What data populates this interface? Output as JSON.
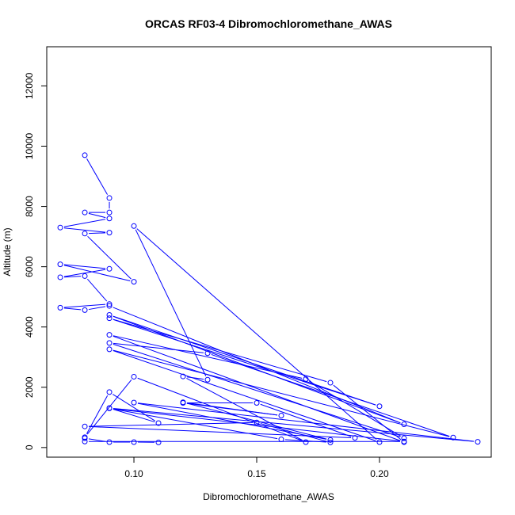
{
  "chart_data": {
    "type": "line",
    "title": "ORCAS RF03-4 Dibromochloromethane_AWAS",
    "xlabel": "Dibromochloromethane_AWAS",
    "ylabel": "Altitude (m)",
    "xlim": [
      0.0645,
      0.2455
    ],
    "ylim": [
      -320,
      13300
    ],
    "x_ticks": [
      0.1,
      0.15,
      0.2
    ],
    "x_tick_labels": [
      "0.10",
      "0.15",
      "0.20"
    ],
    "y_ticks": [
      0,
      2000,
      4000,
      6000,
      8000,
      10000,
      12000
    ],
    "y_tick_labels": [
      "0",
      "2000",
      "4000",
      "6000",
      "8000",
      "10000",
      "12000"
    ],
    "grid": false,
    "marker": "open-circle",
    "series": [
      {
        "color": "#0000ff",
        "points": [
          [
            0.08,
            9700
          ],
          [
            0.09,
            8280
          ],
          [
            0.09,
            7800
          ],
          [
            0.08,
            7800
          ],
          [
            0.09,
            7600
          ],
          [
            0.07,
            7300
          ],
          [
            0.09,
            7130
          ],
          [
            0.08,
            7100
          ],
          [
            0.1,
            5500
          ],
          [
            0.07,
            6080
          ],
          [
            0.09,
            5930
          ],
          [
            0.07,
            5650
          ],
          [
            0.08,
            5690
          ],
          [
            0.09,
            4760
          ],
          [
            0.07,
            4640
          ],
          [
            0.08,
            4560
          ],
          [
            0.09,
            4700
          ],
          [
            0.21,
            770
          ],
          [
            0.09,
            4400
          ],
          [
            0.2,
            1370
          ],
          [
            0.09,
            4290
          ],
          [
            0.18,
            2150
          ],
          [
            0.21,
            180
          ],
          [
            0.09,
            3740
          ],
          [
            0.17,
            2270
          ],
          [
            0.21,
            310
          ],
          [
            0.09,
            3470
          ],
          [
            0.13,
            3130
          ],
          [
            0.23,
            330
          ],
          [
            0.09,
            3260
          ],
          [
            0.2,
            180
          ],
          [
            0.1,
            7350
          ],
          [
            0.13,
            2250
          ],
          [
            0.12,
            2360
          ],
          [
            0.17,
            180
          ],
          [
            0.1,
            2350
          ],
          [
            0.08,
            340
          ],
          [
            0.09,
            1840
          ],
          [
            0.11,
            810
          ],
          [
            0.09,
            1310
          ],
          [
            0.24,
            190
          ],
          [
            0.1,
            1490
          ],
          [
            0.18,
            250
          ],
          [
            0.12,
            1500
          ],
          [
            0.16,
            1060
          ],
          [
            0.12,
            1480
          ],
          [
            0.15,
            1480
          ],
          [
            0.19,
            320
          ],
          [
            0.08,
            700
          ],
          [
            0.15,
            830
          ],
          [
            0.18,
            170
          ],
          [
            0.16,
            270
          ],
          [
            0.09,
            1300
          ],
          [
            0.21,
            200
          ],
          [
            0.08,
            200
          ],
          [
            0.08,
            310
          ],
          [
            0.09,
            180
          ],
          [
            0.1,
            180
          ],
          [
            0.11,
            170
          ]
        ]
      }
    ]
  }
}
